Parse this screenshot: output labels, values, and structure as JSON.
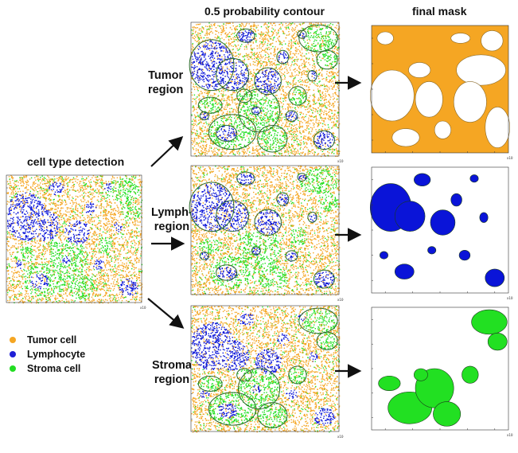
{
  "headers": {
    "contour": "0.5 probability contour",
    "mask": "final mask",
    "detection": "cell type detection"
  },
  "regions": [
    {
      "line1": "Tumor",
      "line2": "region"
    },
    {
      "line1": "Lymph-",
      "line2": "region"
    },
    {
      "line1": "Stroma",
      "line2": "region"
    }
  ],
  "legend": [
    {
      "label": "Tumor cell",
      "color": "#f5a623"
    },
    {
      "label": "Lymphocyte",
      "color": "#1f1fd6"
    },
    {
      "label": "Stroma cell",
      "color": "#22dd22"
    }
  ],
  "colors": {
    "tumor": "#f5a623",
    "lymph": "#0a14d8",
    "stroma": "#22e022",
    "contour_line": "#2a6b2a"
  },
  "axes": {
    "exp_label": "x10⁴"
  }
}
